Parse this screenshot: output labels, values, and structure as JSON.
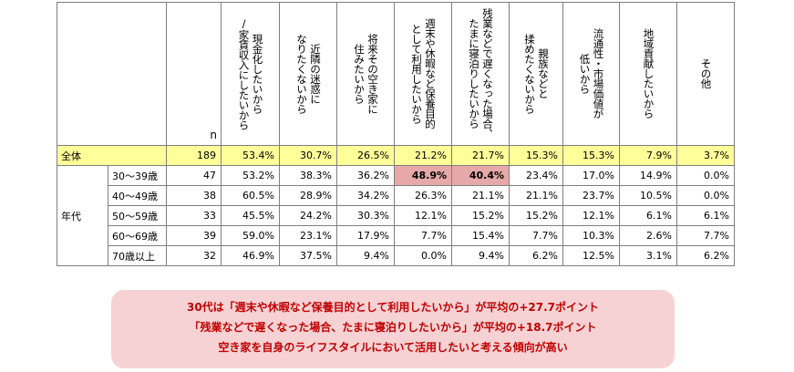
{
  "table": {
    "n_header": "n",
    "columns": [
      "現金化したいから\n/家賃収入にしたいから",
      "近隣の迷惑に\nなりたくないから",
      "将来その空き家に\n住みたいから",
      "週末や休暇など保養目的\nとして利用したいから",
      "残業などで遅くなった場合、\nたまに寝泊りしたいから",
      "親族などと\n揉めたくないから",
      "流通性・市場価値が\n低いから",
      "地域貢献したいから",
      "その他"
    ],
    "total": {
      "label": "全体",
      "n": "189",
      "values": [
        "53.4%",
        "30.7%",
        "26.5%",
        "21.2%",
        "21.7%",
        "15.3%",
        "15.3%",
        "7.9%",
        "3.7%"
      ]
    },
    "group_label": "年代",
    "rows": [
      {
        "label": "30～39歳",
        "n": "47",
        "values": [
          "53.2%",
          "38.3%",
          "36.2%",
          "48.9%",
          "40.4%",
          "23.4%",
          "17.0%",
          "14.9%",
          "0.0%"
        ]
      },
      {
        "label": "40～49歳",
        "n": "38",
        "values": [
          "60.5%",
          "28.9%",
          "34.2%",
          "26.3%",
          "21.1%",
          "21.1%",
          "23.7%",
          "10.5%",
          "0.0%"
        ]
      },
      {
        "label": "50～59歳",
        "n": "33",
        "values": [
          "45.5%",
          "24.2%",
          "30.3%",
          "12.1%",
          "15.2%",
          "15.2%",
          "12.1%",
          "6.1%",
          "6.1%"
        ]
      },
      {
        "label": "60～69歳",
        "n": "39",
        "values": [
          "59.0%",
          "23.1%",
          "17.9%",
          "7.7%",
          "15.4%",
          "7.7%",
          "10.3%",
          "2.6%",
          "7.7%"
        ]
      },
      {
        "label": "70歳以上",
        "n": "32",
        "values": [
          "46.9%",
          "37.5%",
          "9.4%",
          "0.0%",
          "9.4%",
          "6.2%",
          "12.5%",
          "3.1%",
          "6.2%"
        ]
      }
    ]
  },
  "colors": {
    "total_row_bg": "#ffff99",
    "highlight_bg": "#e6a8a8",
    "note_bg": "#f7d2d4",
    "note_text": "#c00000"
  },
  "note": {
    "line1": "30代は「週末や休暇など保養目的として利用したいから」が平均の+27.7ポイント",
    "line2": "「残業などで遅くなった場合、たまに寝泊りしたいから」が平均の+18.7ポイント",
    "line3": "空き家を自身のライフスタイルにおいて活用したいと考える傾向が高い"
  }
}
